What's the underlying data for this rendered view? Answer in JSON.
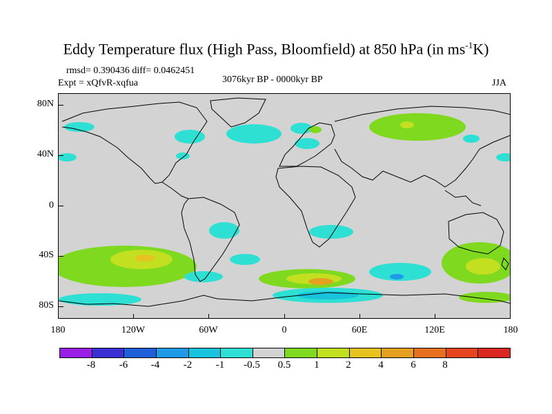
{
  "title": {
    "main": "Eddy Temperature flux (High Pass, Bloomfield) at 850 hPa (in ms",
    "sup": "-1",
    "tail": "K)"
  },
  "stats": "rmsd= 0.390436  diff= 0.0462451",
  "experiment": "Expt = xQfvR-xqfua",
  "period": "3076kyr BP - 0000kyr BP",
  "season": "JJA",
  "map": {
    "y_ticks": [
      "80N",
      "40N",
      "0",
      "40S",
      "80S"
    ],
    "x_ticks": [
      "180",
      "120W",
      "60W",
      "0",
      "60E",
      "120E",
      "180"
    ]
  },
  "colorbar": {
    "colors": [
      "#9a1fe6",
      "#3b2fd6",
      "#1f5fd9",
      "#1f9ae6",
      "#19c3de",
      "#2ee0d4",
      "#d3d3d3",
      "#7ed91f",
      "#c2e01f",
      "#e6c31f",
      "#e6a01f",
      "#e6701f",
      "#e6451f",
      "#d9281f"
    ],
    "labels": [
      "-8",
      "-6",
      "-4",
      "-2",
      "-1",
      "-0.5",
      "0.5",
      "1",
      "2",
      "4",
      "6",
      "8"
    ]
  },
  "anomaly_colors": {
    "neg_weak": "#2ee0d4",
    "neg_mid": "#19c3de",
    "neg_strong": "#1f9ae6",
    "pos_weak": "#7ed91f",
    "pos_mid": "#c2e01f",
    "pos_strong": "#e6c31f",
    "pos_top": "#e6a01f"
  }
}
